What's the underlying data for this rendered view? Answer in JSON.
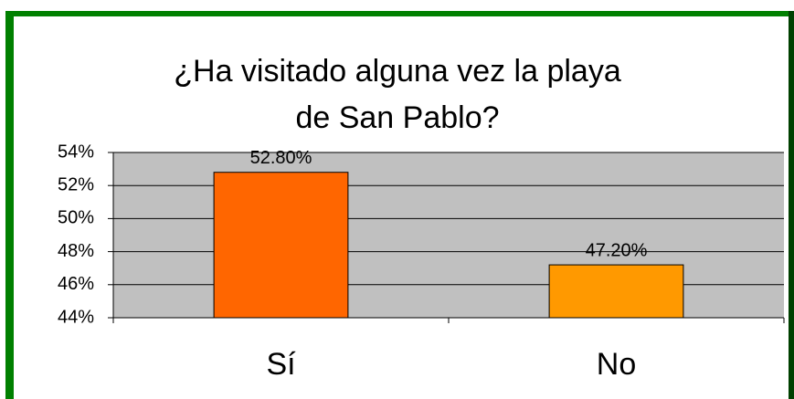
{
  "chart_data": {
    "type": "bar",
    "title": [
      "¿Ha visitado alguna vez la playa",
      "de San Pablo?"
    ],
    "categories": [
      "Sí",
      "No"
    ],
    "values": [
      52.8,
      47.2
    ],
    "value_labels": [
      "52.80%",
      "47.20%"
    ],
    "colors": [
      "#ff6600",
      "#ff9900"
    ],
    "ylim": [
      44,
      54
    ],
    "yticks": [
      {
        "value": 44,
        "label": "44%"
      },
      {
        "value": 46,
        "label": "46%"
      },
      {
        "value": 48,
        "label": "48%"
      },
      {
        "value": 50,
        "label": "50%"
      },
      {
        "value": 52,
        "label": "52%"
      },
      {
        "value": 54,
        "label": "54%"
      }
    ],
    "grid": true
  }
}
